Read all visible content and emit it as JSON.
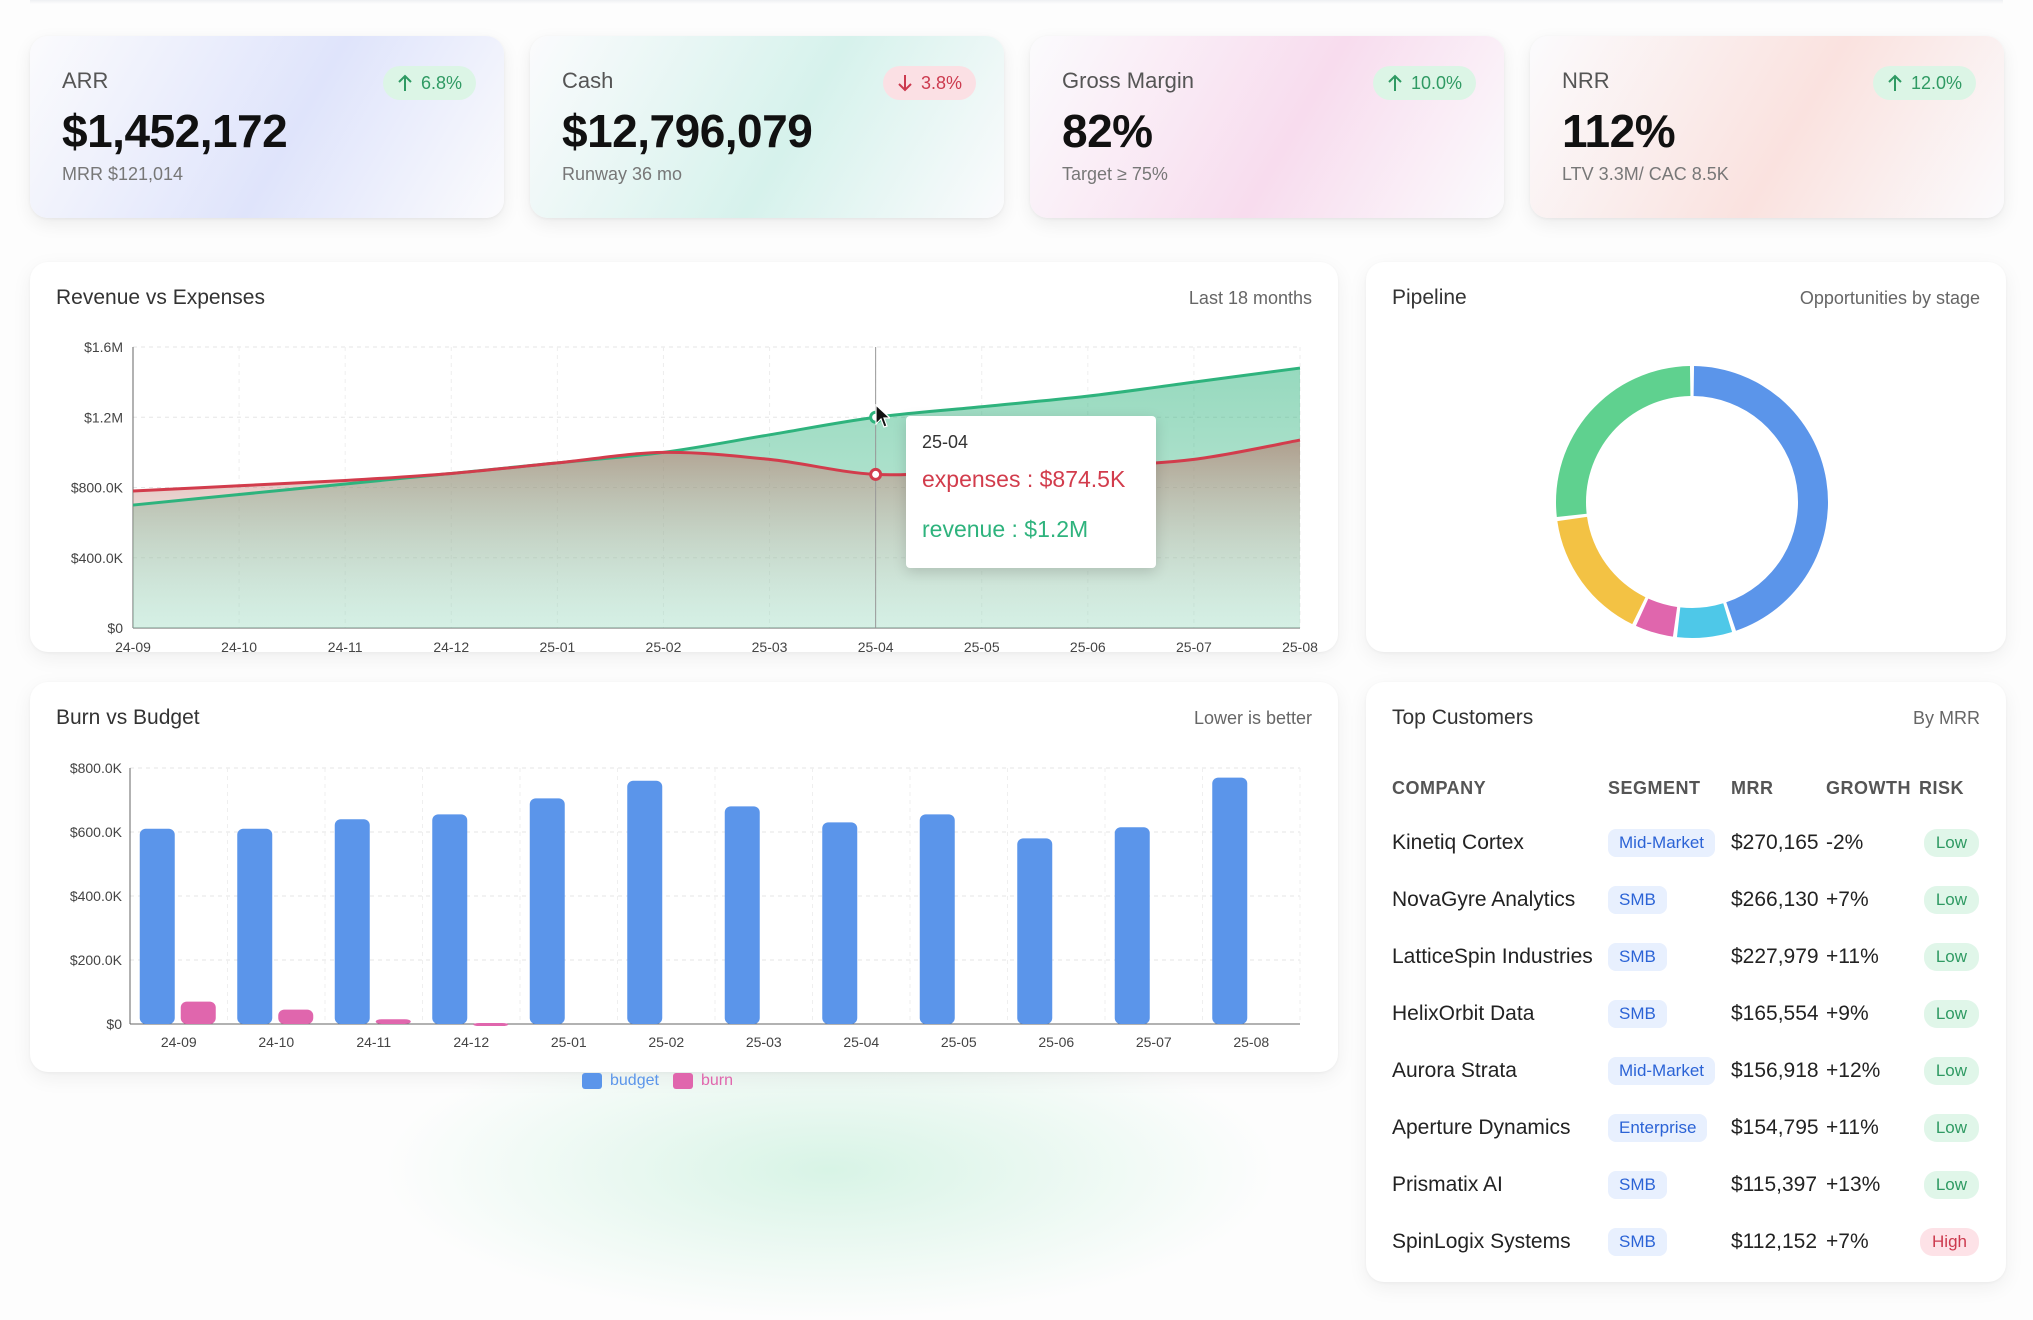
{
  "kpis": [
    {
      "label": "ARR",
      "value": "$1,452,172",
      "sub": "MRR $121,014",
      "delta": "6.8%",
      "direction": "up",
      "tint": "#dfe4fb"
    },
    {
      "label": "Cash",
      "value": "$12,796,079",
      "sub": "Runway 36 mo",
      "delta": "3.8%",
      "direction": "down",
      "tint": "#d6f2ec"
    },
    {
      "label": "Gross Margin",
      "value": "82%",
      "sub": "Target ≥ 75%",
      "delta": "10.0%",
      "direction": "up",
      "tint": "#f8dcee"
    },
    {
      "label": "NRR",
      "value": "112%",
      "sub": "LTV 3.3M/ CAC 8.5K",
      "delta": "12.0%",
      "direction": "up",
      "tint": "#fae2df"
    }
  ],
  "revenue_card": {
    "title": "Revenue vs Expenses",
    "note": "Last 18 months"
  },
  "tooltip": {
    "date": "25-04",
    "expenses": "expenses : $874.5K",
    "revenue": "revenue : $1.2M"
  },
  "burn_card": {
    "title": "Burn vs Budget",
    "note": "Lower is better"
  },
  "pipeline_card": {
    "title": "Pipeline",
    "note": "Opportunities by stage"
  },
  "customers_card": {
    "title": "Top Customers",
    "note": "By MRR",
    "headers": [
      "COMPANY",
      "SEGMENT",
      "MRR",
      "GROWTH",
      "RISK"
    ],
    "rows": [
      {
        "company": "Kinetiq Cortex",
        "segment": "Mid-Market",
        "mrr": "$270,165",
        "growth": "-2%",
        "risk": "Low"
      },
      {
        "company": "NovaGyre Analytics",
        "segment": "SMB",
        "mrr": "$266,130",
        "growth": "+7%",
        "risk": "Low"
      },
      {
        "company": "LatticeSpin Industries",
        "segment": "SMB",
        "mrr": "$227,979",
        "growth": "+11%",
        "risk": "Low"
      },
      {
        "company": "HelixOrbit Data",
        "segment": "SMB",
        "mrr": "$165,554",
        "growth": "+9%",
        "risk": "Low"
      },
      {
        "company": "Aurora Strata",
        "segment": "Mid-Market",
        "mrr": "$156,918",
        "growth": "+12%",
        "risk": "Low"
      },
      {
        "company": "Aperture Dynamics",
        "segment": "Enterprise",
        "mrr": "$154,795",
        "growth": "+11%",
        "risk": "Low"
      },
      {
        "company": "Prismatix AI",
        "segment": "SMB",
        "mrr": "$115,397",
        "growth": "+13%",
        "risk": "Low"
      },
      {
        "company": "SpinLogix Systems",
        "segment": "SMB",
        "mrr": "$112,152",
        "growth": "+7%",
        "risk": "High"
      }
    ]
  },
  "colors": {
    "revenue": "#2eb37d",
    "expenses": "#d23c4c",
    "budget": "#5b95ea",
    "burn": "#e066ad"
  },
  "chart_data": [
    {
      "type": "area",
      "x": [
        "24-09",
        "24-10",
        "24-11",
        "24-12",
        "25-01",
        "25-02",
        "25-03",
        "25-04",
        "25-05",
        "25-06",
        "25-07",
        "25-08"
      ],
      "series": [
        {
          "name": "revenue",
          "values": [
            700000,
            760000,
            820000,
            880000,
            940000,
            1000000,
            1100000,
            1200000,
            1260000,
            1320000,
            1400000,
            1480000
          ]
        },
        {
          "name": "expenses",
          "values": [
            780000,
            810000,
            840000,
            880000,
            940000,
            1000000,
            960000,
            874500,
            900000,
            920000,
            960000,
            1070000
          ]
        }
      ],
      "yticks": [
        "$0",
        "$400.0K",
        "$800.0K",
        "$1.2M",
        "$1.6M"
      ],
      "ylim": [
        0,
        1600000
      ],
      "grid": true
    },
    {
      "type": "bar",
      "categories": [
        "24-09",
        "24-10",
        "24-11",
        "24-12",
        "25-01",
        "25-02",
        "25-03",
        "25-04",
        "25-05",
        "25-06",
        "25-07",
        "25-08"
      ],
      "series": [
        {
          "name": "budget",
          "values": [
            610000,
            610000,
            640000,
            655000,
            705000,
            760000,
            680000,
            630000,
            655000,
            580000,
            615000,
            770000
          ]
        },
        {
          "name": "burn",
          "values": [
            70000,
            45000,
            15000,
            3000,
            0,
            0,
            0,
            0,
            0,
            0,
            0,
            0
          ]
        }
      ],
      "yticks": [
        "$0",
        "$200.0K",
        "$400.0K",
        "$600.0K",
        "$800.0K"
      ],
      "ylim": [
        0,
        800000
      ],
      "legend": "bottom",
      "grid": true
    },
    {
      "type": "pie",
      "donut": true,
      "values": [
        45,
        7,
        5,
        16,
        27
      ],
      "colors": [
        "#5b95ea",
        "#4ec8e8",
        "#e066ad",
        "#f3c244",
        "#5fd18f"
      ]
    }
  ]
}
